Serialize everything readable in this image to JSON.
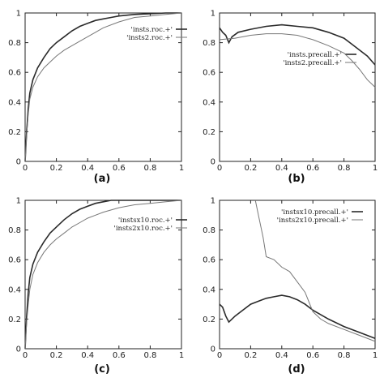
{
  "chart_data": [
    {
      "type": "line",
      "label": "(a)",
      "xlim": [
        0,
        1
      ],
      "ylim": [
        0,
        1
      ],
      "xticks": [
        "0",
        "0.2",
        "0.4",
        "0.6",
        "0.8",
        "1"
      ],
      "yticks": [
        "0",
        "0.2",
        "0.4",
        "0.6",
        "0.8",
        "1"
      ],
      "legend_position": "top-right",
      "series": [
        {
          "name": "'insts.roc.+'",
          "style": "dark",
          "x": [
            0,
            0.01,
            0.02,
            0.03,
            0.05,
            0.08,
            0.12,
            0.16,
            0.2,
            0.25,
            0.3,
            0.35,
            0.4,
            0.45,
            0.5,
            0.55,
            0.6,
            0.7,
            0.8,
            0.9,
            1.0
          ],
          "y": [
            0,
            0.2,
            0.36,
            0.46,
            0.55,
            0.63,
            0.7,
            0.76,
            0.8,
            0.84,
            0.88,
            0.91,
            0.93,
            0.95,
            0.96,
            0.97,
            0.98,
            0.99,
            0.995,
            1.0,
            1.0
          ]
        },
        {
          "name": "'insts2.roc.+'",
          "style": "light",
          "x": [
            0,
            0.01,
            0.02,
            0.03,
            0.05,
            0.08,
            0.12,
            0.16,
            0.2,
            0.25,
            0.3,
            0.35,
            0.4,
            0.45,
            0.5,
            0.6,
            0.7,
            0.8,
            0.9,
            1.0
          ],
          "y": [
            0,
            0.18,
            0.32,
            0.42,
            0.5,
            0.57,
            0.63,
            0.67,
            0.71,
            0.75,
            0.78,
            0.81,
            0.84,
            0.87,
            0.9,
            0.94,
            0.97,
            0.98,
            0.99,
            1.0
          ]
        }
      ]
    },
    {
      "type": "line",
      "label": "(b)",
      "xlim": [
        0,
        1
      ],
      "ylim": [
        0,
        1
      ],
      "xticks": [
        "0",
        "0.2",
        "0.4",
        "0.6",
        "0.8",
        "1"
      ],
      "yticks": [
        "0",
        "0.2",
        "0.4",
        "0.6",
        "0.8",
        "1"
      ],
      "legend_position": "center-right",
      "series": [
        {
          "name": "'insts.precall.+'",
          "style": "dark",
          "x": [
            0,
            0.02,
            0.04,
            0.06,
            0.08,
            0.12,
            0.2,
            0.3,
            0.4,
            0.5,
            0.6,
            0.7,
            0.8,
            0.85,
            0.9,
            0.95,
            1.0
          ],
          "y": [
            0.9,
            0.87,
            0.85,
            0.8,
            0.84,
            0.87,
            0.89,
            0.91,
            0.92,
            0.91,
            0.9,
            0.87,
            0.83,
            0.79,
            0.75,
            0.71,
            0.65
          ]
        },
        {
          "name": "'insts2.precall.+'",
          "style": "light",
          "x": [
            0,
            0.1,
            0.2,
            0.3,
            0.4,
            0.5,
            0.6,
            0.7,
            0.8,
            0.85,
            0.9,
            0.95,
            1.0
          ],
          "y": [
            0.82,
            0.83,
            0.85,
            0.86,
            0.86,
            0.85,
            0.82,
            0.78,
            0.73,
            0.68,
            0.62,
            0.55,
            0.5
          ]
        }
      ]
    },
    {
      "type": "line",
      "label": "(c)",
      "xlim": [
        0,
        1
      ],
      "ylim": [
        0,
        1
      ],
      "xticks": [
        "0",
        "0.2",
        "0.4",
        "0.6",
        "0.8",
        "1"
      ],
      "yticks": [
        "0",
        "0.2",
        "0.4",
        "0.6",
        "0.8",
        "1"
      ],
      "legend_position": "top-right",
      "series": [
        {
          "name": "'instsx10.roc.+'",
          "style": "dark",
          "x": [
            0,
            0.01,
            0.02,
            0.03,
            0.05,
            0.08,
            0.12,
            0.16,
            0.2,
            0.25,
            0.3,
            0.35,
            0.4,
            0.45,
            0.5,
            0.55,
            0.6,
            0.7,
            0.8,
            0.9,
            1.0
          ],
          "y": [
            0,
            0.22,
            0.38,
            0.48,
            0.57,
            0.65,
            0.72,
            0.78,
            0.82,
            0.87,
            0.91,
            0.94,
            0.96,
            0.98,
            0.99,
            1.0,
            1.0,
            1.0,
            1.0,
            1.0,
            1.0
          ]
        },
        {
          "name": "'insts2x10.roc.+'",
          "style": "light",
          "x": [
            0,
            0.01,
            0.02,
            0.03,
            0.05,
            0.08,
            0.12,
            0.16,
            0.2,
            0.25,
            0.3,
            0.35,
            0.4,
            0.45,
            0.5,
            0.6,
            0.7,
            0.8,
            0.9,
            1.0
          ],
          "y": [
            0,
            0.18,
            0.3,
            0.4,
            0.5,
            0.58,
            0.65,
            0.7,
            0.74,
            0.78,
            0.82,
            0.85,
            0.88,
            0.9,
            0.92,
            0.95,
            0.97,
            0.98,
            0.99,
            1.0
          ]
        }
      ]
    },
    {
      "type": "line",
      "label": "(d)",
      "xlim": [
        0,
        1
      ],
      "ylim": [
        0,
        1
      ],
      "xticks": [
        "0",
        "0.2",
        "0.4",
        "0.6",
        "0.8",
        "1"
      ],
      "yticks": [
        "0",
        "0.2",
        "0.4",
        "0.6",
        "0.8",
        "1"
      ],
      "legend_position": "top-right",
      "series": [
        {
          "name": "'instsx10.precall.+'",
          "style": "dark",
          "x": [
            0,
            0.02,
            0.04,
            0.06,
            0.1,
            0.15,
            0.2,
            0.25,
            0.3,
            0.35,
            0.4,
            0.45,
            0.5,
            0.55,
            0.6,
            0.7,
            0.8,
            0.9,
            1.0
          ],
          "y": [
            0.3,
            0.28,
            0.22,
            0.18,
            0.22,
            0.26,
            0.3,
            0.32,
            0.34,
            0.35,
            0.36,
            0.35,
            0.33,
            0.3,
            0.26,
            0.2,
            0.15,
            0.11,
            0.07
          ]
        },
        {
          "name": "'insts2x10.precall.+'",
          "style": "light",
          "x": [
            0.23,
            0.25,
            0.28,
            0.3,
            0.35,
            0.4,
            0.45,
            0.5,
            0.55,
            0.6,
            0.65,
            0.7,
            0.8,
            0.9,
            1.0
          ],
          "y": [
            1.0,
            0.9,
            0.75,
            0.62,
            0.6,
            0.55,
            0.52,
            0.45,
            0.38,
            0.25,
            0.2,
            0.17,
            0.13,
            0.09,
            0.05
          ]
        }
      ]
    }
  ]
}
